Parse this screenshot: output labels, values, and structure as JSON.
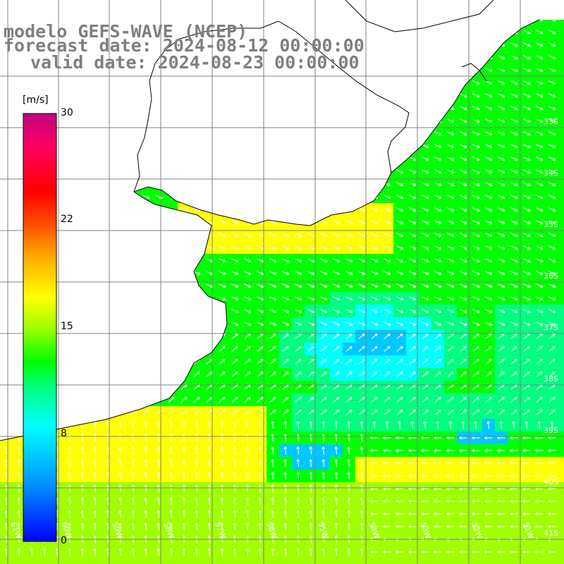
{
  "header": {
    "model_line": "modelo GEFS-WAVE (NCEP)",
    "forecast_line": "forecast date: 2024-08-12 00:00:00",
    "valid_line": "valid date: 2024-08-23 00:00:00"
  },
  "colorbar": {
    "unit": "[m/s]",
    "ticks": [
      "30",
      "22",
      "15",
      "8",
      "0"
    ],
    "tick_values": [
      30,
      22,
      15,
      8,
      0
    ],
    "range": [
      0,
      30
    ],
    "colors": [
      "#0000ff",
      "#00c8ff",
      "#00ffff",
      "#00ff80",
      "#00ff00",
      "#a0ff00",
      "#ffff00",
      "#ffc000",
      "#ff7000",
      "#ff0000",
      "#ff0060",
      "#c0007f"
    ]
  },
  "map": {
    "lat_labels": [
      "33S",
      "34S",
      "35S",
      "36S",
      "37S",
      "38S",
      "39S",
      "40S",
      "41S"
    ],
    "lon_labels": [
      "61W",
      "60W",
      "59W",
      "58W",
      "57W",
      "56W",
      "55W",
      "54W",
      "53W",
      "52W",
      "51W"
    ],
    "grid_color": "#808080",
    "coast_color": "#000000",
    "land_color": "#ffffff",
    "arrow_color": "#ffffff"
  }
}
